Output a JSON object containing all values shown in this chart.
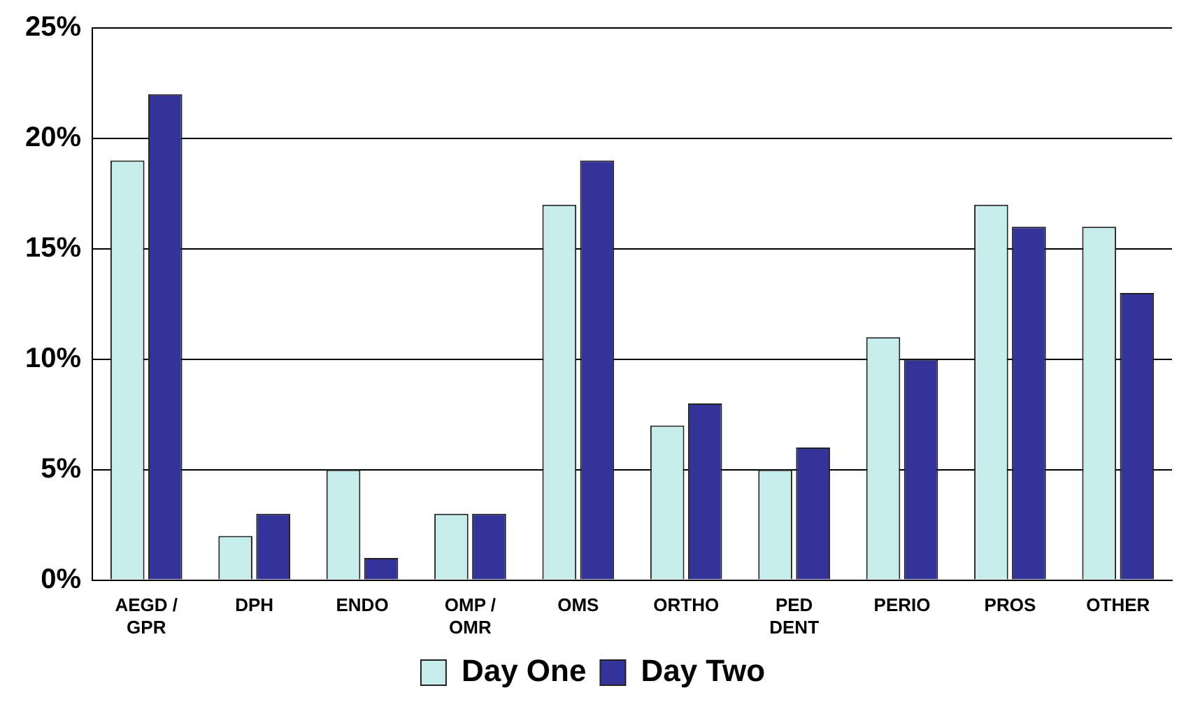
{
  "chart_data": {
    "type": "bar",
    "categories": [
      "AEGD /\nGPR",
      "DPH",
      "ENDO",
      "OMP /\nOMR",
      "OMS",
      "ORTHO",
      "PED\nDENT",
      "PERIO",
      "PROS",
      "OTHER"
    ],
    "series": [
      {
        "name": "Day One",
        "color": "#c6ecec",
        "values": [
          19,
          2,
          5,
          3,
          17,
          7,
          5,
          11,
          17,
          16
        ]
      },
      {
        "name": "Day Two",
        "color": "#33339a",
        "values": [
          22,
          3,
          1,
          3,
          19,
          8,
          6,
          10,
          16,
          13
        ]
      }
    ],
    "ylim": [
      0,
      25
    ],
    "yticks": [
      {
        "value": 0,
        "label": "0%"
      },
      {
        "value": 5,
        "label": "5%"
      },
      {
        "value": 10,
        "label": "10%"
      },
      {
        "value": 15,
        "label": "15%"
      },
      {
        "value": 20,
        "label": "20%"
      },
      {
        "value": 25,
        "label": "25%"
      }
    ],
    "grid": "y",
    "legend": "bottom"
  }
}
